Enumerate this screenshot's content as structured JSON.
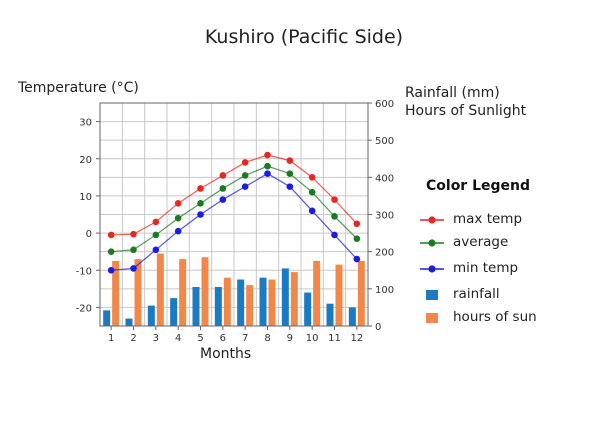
{
  "chart_data": {
    "type": "bar+line",
    "title": "Kushiro (Pacific Side)",
    "xlabel": "Months",
    "ylabel_left": "Temperature (°C)",
    "ylabel_right_line1": "Rainfall (mm)",
    "ylabel_right_line2": "Hours of Sunlight",
    "categories": [
      "1",
      "2",
      "3",
      "4",
      "5",
      "6",
      "7",
      "8",
      "9",
      "10",
      "11",
      "12"
    ],
    "ylim_left": [
      -25,
      35
    ],
    "yticks_left": [
      -20,
      -10,
      0,
      10,
      20,
      30
    ],
    "yticks_left_labels": [
      "-20",
      "-10",
      "0",
      "10",
      "20",
      "30"
    ],
    "ylim_right": [
      0,
      600
    ],
    "yticks_right": [
      0,
      100,
      200,
      300,
      400,
      500,
      600
    ],
    "yticks_right_labels": [
      "0",
      "100",
      "200",
      "300",
      "400",
      "500",
      "600"
    ],
    "grid": true,
    "legend_title": "Color Legend",
    "legend_position": "right",
    "series": [
      {
        "name": "max temp",
        "kind": "line",
        "axis": "left",
        "color": "#e8271f",
        "values": [
          -0.5,
          -0.3,
          3,
          8,
          12,
          15.5,
          19,
          21,
          19.5,
          15,
          9,
          2.5
        ]
      },
      {
        "name": "average",
        "kind": "line",
        "axis": "left",
        "color": "#1a7a1f",
        "values": [
          -5,
          -4.5,
          -0.5,
          4,
          8,
          12,
          15.5,
          18,
          16,
          11,
          4.5,
          -1.5
        ]
      },
      {
        "name": "min temp",
        "kind": "line",
        "axis": "left",
        "color": "#1c1ce0",
        "values": [
          -10,
          -9.5,
          -4.5,
          0.5,
          5,
          9,
          12.5,
          16,
          12.5,
          6,
          -0.5,
          -7
        ]
      },
      {
        "name": "rainfall",
        "kind": "bar",
        "axis": "right",
        "color": "#1a7ac4",
        "values": [
          42,
          20,
          55,
          75,
          105,
          105,
          125,
          130,
          155,
          90,
          60,
          50
        ]
      },
      {
        "name": "hours of sun",
        "kind": "bar",
        "axis": "right",
        "color": "#f2874a",
        "values": [
          175,
          180,
          195,
          180,
          185,
          130,
          110,
          125,
          145,
          175,
          165,
          175
        ]
      }
    ]
  }
}
